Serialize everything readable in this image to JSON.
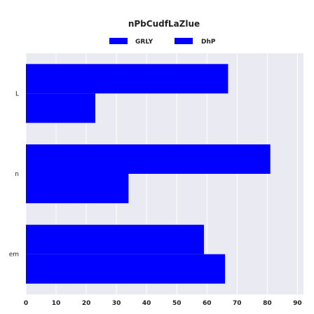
{
  "chart_data": {
    "type": "bar",
    "orientation": "horizontal",
    "title": "nPbCudfLaZlue",
    "categories": [
      "L",
      "n",
      "em"
    ],
    "series": [
      {
        "name": "GRLY",
        "color": "#0000ff",
        "values": [
          67,
          81,
          59
        ]
      },
      {
        "name": "DhP",
        "color": "#0000ff",
        "values": [
          23,
          34,
          66
        ]
      }
    ],
    "xlim": [
      0,
      92
    ],
    "xticks": [
      0,
      10,
      20,
      30,
      40,
      50,
      60,
      70,
      80,
      90
    ],
    "grid": true,
    "legend_position": "top-center",
    "plot_background": "#eaeaf2"
  }
}
